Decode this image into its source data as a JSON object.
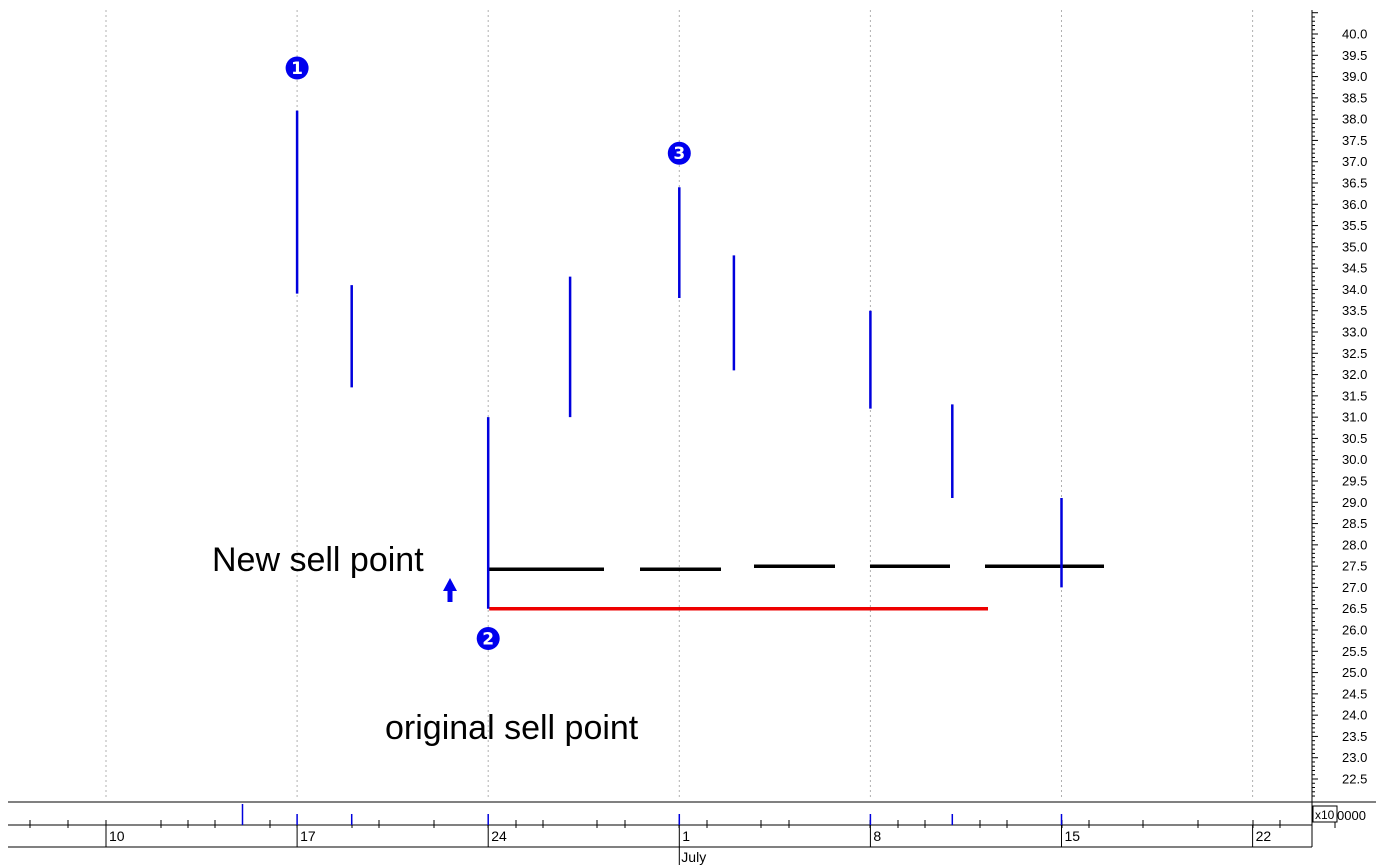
{
  "chart_data": {
    "type": "bar",
    "subtype": "high-low",
    "title": "",
    "xlabel": "",
    "ylabel": "",
    "ylim": [
      22,
      40.5
    ],
    "y_ticks": [
      "22.5",
      "23.0",
      "23.5",
      "24.0",
      "24.5",
      "25.0",
      "25.5",
      "26.0",
      "26.5",
      "27.0",
      "27.5",
      "28.0",
      "28.5",
      "29.0",
      "29.5",
      "30.0",
      "30.5",
      "31.0",
      "31.5",
      "32.0",
      "32.5",
      "33.0",
      "33.5",
      "34.0",
      "34.5",
      "35.0",
      "35.5",
      "36.0",
      "36.5",
      "37.0",
      "37.5",
      "38.0",
      "38.5",
      "39.0",
      "39.5",
      "40.0"
    ],
    "x_range": [
      "06-06",
      "07-27"
    ],
    "x_day_labels": [
      {
        "date": "06-10",
        "text": "10"
      },
      {
        "date": "06-17",
        "text": "17"
      },
      {
        "date": "06-24",
        "text": "24"
      },
      {
        "date": "07-01",
        "text": "1"
      },
      {
        "date": "07-08",
        "text": "8"
      },
      {
        "date": "07-15",
        "text": "15"
      },
      {
        "date": "07-22",
        "text": "22"
      }
    ],
    "month_label": {
      "date": "07-01",
      "text": "July"
    },
    "grid_dates": [
      "06-10",
      "06-17",
      "06-24",
      "07-01",
      "07-08",
      "07-15",
      "07-22"
    ],
    "grid": true,
    "series": [
      {
        "bars": [
          {
            "date": "06-17",
            "high": 38.2,
            "low": 33.9
          },
          {
            "date": "06-19",
            "high": 34.1,
            "low": 31.7
          },
          {
            "date": "06-24",
            "high": 31.0,
            "low": 26.5
          },
          {
            "date": "06-27",
            "high": 34.3,
            "low": 31.0
          },
          {
            "date": "07-01",
            "high": 36.4,
            "low": 33.8
          },
          {
            "date": "07-03",
            "high": 34.8,
            "low": 32.1
          },
          {
            "date": "07-08",
            "high": 33.5,
            "low": 31.2
          },
          {
            "date": "07-11",
            "high": 31.3,
            "low": 29.1
          },
          {
            "date": "07-15",
            "high": 29.1,
            "low": 27.0
          }
        ]
      }
    ],
    "lines": [
      {
        "label": "New sell point",
        "y": 27.45,
        "from": "06-24",
        "to": "07-18",
        "style": "dashed",
        "color": "#000000"
      },
      {
        "label": "original sell point",
        "y": 26.5,
        "from": "06-24",
        "to": "07-14",
        "style": "solid",
        "color": "#ee0000"
      }
    ],
    "annotations": [
      {
        "id": "marker-1",
        "text": "1",
        "date": "06-17",
        "y": 39.2
      },
      {
        "id": "marker-2",
        "text": "2",
        "date": "06-24",
        "y": 25.8
      },
      {
        "id": "marker-3",
        "text": "3",
        "date": "07-01",
        "y": 37.2
      }
    ],
    "volume_row": {
      "ticks": [
        "06-10",
        "06-12",
        "06-13",
        "06-14",
        "06-16",
        "06-17",
        "06-19",
        "06-20",
        "06-22",
        "06-24",
        "06-25",
        "06-26",
        "06-28",
        "06-29",
        "07-01",
        "07-02",
        "07-04",
        "07-05",
        "07-08",
        "07-09",
        "07-10",
        "07-12",
        "07-13",
        "07-15",
        "07-16",
        "07-18",
        "07-20",
        "07-22",
        "07-23",
        "07-25"
      ],
      "spike_date": "06-15",
      "scale_label": "x10",
      "scale_value": "0000"
    }
  },
  "labels": {
    "new_sell_point": "New sell point",
    "original_sell_point": "original sell point"
  },
  "colors": {
    "bar": "#0000dd",
    "marker": "#0000ee",
    "grid": "#b0b0b0",
    "new_sell_line": "#000000",
    "original_sell_line": "#ee0000",
    "arrow": "#0000ee"
  }
}
